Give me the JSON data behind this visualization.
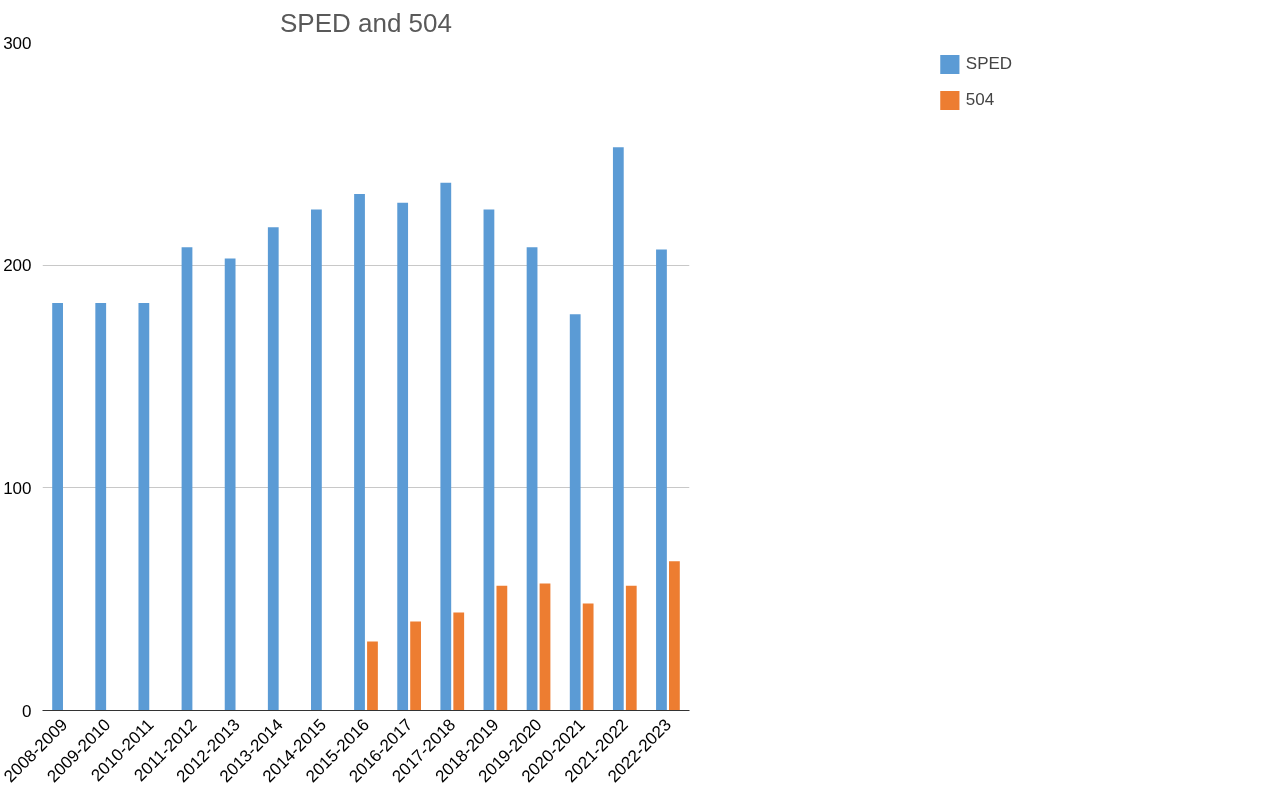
{
  "chart_data": {
    "type": "bar",
    "title": "SPED and 504",
    "categories": [
      "2008-2009",
      "2009-2010",
      "2010-2011",
      "2011-2012",
      "2012-2013",
      "2013-2014",
      "2014-2015",
      "2015-2016",
      "2016-2017",
      "2017-2018",
      "2018-2019",
      "2019-2020",
      "2020-2021",
      "2021-2022",
      "2022-2023"
    ],
    "series": [
      {
        "name": "SPED",
        "color": "#5b9bd5",
        "values": [
          183,
          183,
          183,
          208,
          203,
          217,
          225,
          232,
          228,
          237,
          225,
          208,
          178,
          253,
          207
        ]
      },
      {
        "name": "504",
        "color": "#ed7d31",
        "values": [
          null,
          null,
          null,
          null,
          null,
          null,
          null,
          31,
          40,
          44,
          56,
          57,
          48,
          56,
          67
        ]
      }
    ],
    "ylim": [
      0,
      300
    ],
    "yticks": [
      0,
      100,
      200,
      300
    ],
    "grid": "y",
    "legend": "top right"
  }
}
